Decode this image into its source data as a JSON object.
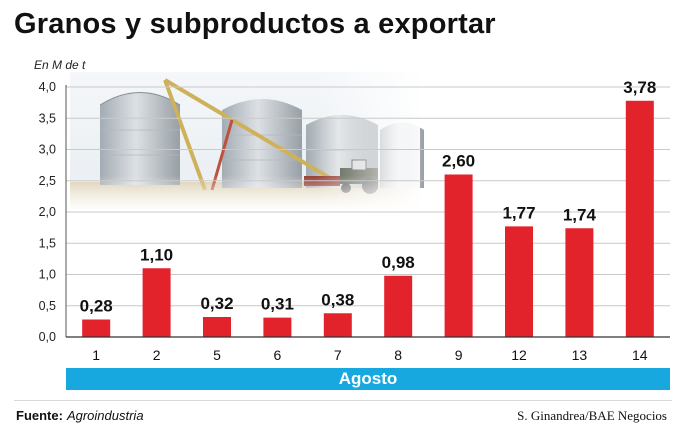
{
  "title": "Granos y subproductos a exportar",
  "chart_data": {
    "type": "bar",
    "ylabel": "En M de t",
    "categories": [
      "1",
      "2",
      "5",
      "6",
      "7",
      "8",
      "9",
      "12",
      "13",
      "14"
    ],
    "values": [
      0.28,
      1.1,
      0.32,
      0.31,
      0.38,
      0.98,
      2.6,
      1.77,
      1.74,
      3.78
    ],
    "value_labels": [
      "0,28",
      "1,10",
      "0,32",
      "0,31",
      "0,38",
      "0,98",
      "2,60",
      "1,77",
      "1,74",
      "3,78"
    ],
    "yticks": [
      "0,0",
      "0,5",
      "1,0",
      "1,5",
      "2,0",
      "2,5",
      "3,0",
      "3,5",
      "4,0"
    ],
    "ylim": [
      0,
      4
    ],
    "xgroup_label": "Agosto",
    "grid": true,
    "bar_color": "#e3232b",
    "band_color": "#18a8e0"
  },
  "footer": {
    "source_label": "Fuente:",
    "source_value": "Agroindustria",
    "credit": "S. Ginandrea/BAE Negocios"
  }
}
